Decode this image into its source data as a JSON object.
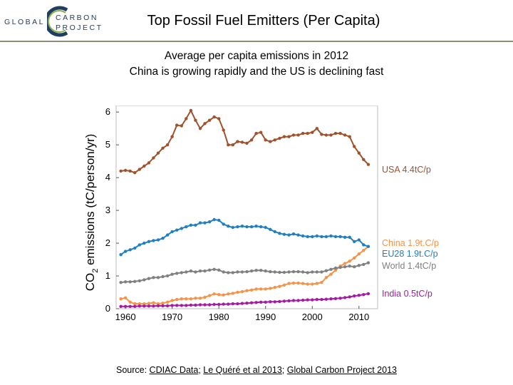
{
  "header": {
    "logo_word1": "GLOBAL",
    "logo_word2": "CARBON",
    "logo_word3": "PROJECT",
    "title": "Top Fossil Fuel Emitters (Per Capita)"
  },
  "subtitle": {
    "line1": "Average per capita emissions in 2012",
    "line2": "China is growing rapidly and the US is declining fast"
  },
  "source": {
    "prefix": "Source: ",
    "link1": "CDIAC Data",
    "sep1": "; ",
    "link2": "Le Quéré et al 2013",
    "sep2": "; ",
    "link3": "Global Carbon Project 2013"
  },
  "colors": {
    "logo_blue": "#1f3e62",
    "logo_green": "#8bb04a",
    "rule": "#8f8f78"
  },
  "chart_data": {
    "type": "line",
    "title": "",
    "ylabel_main": "CO",
    "ylabel_sub": "2",
    "ylabel_rest": " emissions (tC/person/yr)",
    "xlabel": "",
    "xlim": [
      1958,
      2014
    ],
    "ylim": [
      0,
      6.2
    ],
    "xticks": [
      1960,
      1970,
      1980,
      1990,
      2000,
      2010
    ],
    "yticks": [
      0,
      1,
      2,
      3,
      4,
      5,
      6
    ],
    "grid": false,
    "legend": "right-side end labels",
    "x": [
      1959,
      1960,
      1961,
      1962,
      1963,
      1964,
      1965,
      1966,
      1967,
      1968,
      1969,
      1970,
      1971,
      1972,
      1973,
      1974,
      1975,
      1976,
      1977,
      1978,
      1979,
      1980,
      1981,
      1982,
      1983,
      1984,
      1985,
      1986,
      1987,
      1988,
      1989,
      1990,
      1991,
      1992,
      1993,
      1994,
      1995,
      1996,
      1997,
      1998,
      1999,
      2000,
      2001,
      2002,
      2003,
      2004,
      2005,
      2006,
      2007,
      2008,
      2009,
      2010,
      2011,
      2012
    ],
    "series": [
      {
        "name": "USA 4.4tC/p",
        "color": "#a0522d",
        "values": [
          4.2,
          4.22,
          4.2,
          4.15,
          4.25,
          4.35,
          4.45,
          4.6,
          4.75,
          4.9,
          5.0,
          5.25,
          5.6,
          5.58,
          5.8,
          6.05,
          5.75,
          5.5,
          5.65,
          5.75,
          5.85,
          5.8,
          5.45,
          5.0,
          5.0,
          5.1,
          5.08,
          5.05,
          5.15,
          5.35,
          5.38,
          5.15,
          5.1,
          5.15,
          5.2,
          5.25,
          5.25,
          5.3,
          5.3,
          5.35,
          5.35,
          5.38,
          5.5,
          5.32,
          5.3,
          5.3,
          5.35,
          5.35,
          5.3,
          5.25,
          4.95,
          4.75,
          4.55,
          4.4
        ]
      },
      {
        "name": "China 1.9t.C/p",
        "color": "#f4934a",
        "values": [
          0.3,
          0.33,
          0.2,
          0.15,
          0.15,
          0.15,
          0.16,
          0.18,
          0.15,
          0.17,
          0.2,
          0.25,
          0.28,
          0.3,
          0.3,
          0.3,
          0.32,
          0.32,
          0.35,
          0.4,
          0.45,
          0.43,
          0.42,
          0.45,
          0.47,
          0.5,
          0.52,
          0.55,
          0.57,
          0.6,
          0.6,
          0.6,
          0.62,
          0.65,
          0.68,
          0.72,
          0.77,
          0.78,
          0.78,
          0.77,
          0.75,
          0.75,
          0.77,
          0.8,
          0.95,
          1.05,
          1.18,
          1.3,
          1.38,
          1.45,
          1.55,
          1.67,
          1.78,
          1.9
        ]
      },
      {
        "name": "EU28 1.9t.C/p",
        "color": "#1f7fc0",
        "values": [
          1.65,
          1.75,
          1.8,
          1.85,
          1.95,
          2.0,
          2.05,
          2.08,
          2.1,
          2.15,
          2.25,
          2.35,
          2.4,
          2.45,
          2.5,
          2.55,
          2.55,
          2.62,
          2.62,
          2.65,
          2.72,
          2.7,
          2.58,
          2.52,
          2.48,
          2.5,
          2.52,
          2.5,
          2.5,
          2.52,
          2.5,
          2.48,
          2.42,
          2.35,
          2.3,
          2.27,
          2.25,
          2.28,
          2.25,
          2.22,
          2.2,
          2.2,
          2.22,
          2.2,
          2.2,
          2.22,
          2.2,
          2.2,
          2.18,
          2.18,
          2.05,
          2.1,
          1.95,
          1.9
        ]
      },
      {
        "name": "World 1.4tC/p",
        "color": "#808080",
        "values": [
          0.8,
          0.82,
          0.82,
          0.83,
          0.85,
          0.88,
          0.92,
          0.95,
          0.95,
          0.98,
          1.0,
          1.05,
          1.08,
          1.1,
          1.12,
          1.15,
          1.12,
          1.15,
          1.15,
          1.18,
          1.2,
          1.18,
          1.12,
          1.1,
          1.1,
          1.12,
          1.12,
          1.13,
          1.15,
          1.17,
          1.17,
          1.15,
          1.13,
          1.12,
          1.11,
          1.11,
          1.12,
          1.13,
          1.13,
          1.12,
          1.1,
          1.12,
          1.12,
          1.12,
          1.16,
          1.2,
          1.24,
          1.26,
          1.28,
          1.3,
          1.28,
          1.32,
          1.35,
          1.4
        ]
      },
      {
        "name": "India 0.5tC/p",
        "color": "#a41ba4",
        "values": [
          0.07,
          0.07,
          0.07,
          0.07,
          0.08,
          0.08,
          0.08,
          0.08,
          0.09,
          0.09,
          0.09,
          0.1,
          0.1,
          0.1,
          0.1,
          0.11,
          0.11,
          0.12,
          0.12,
          0.12,
          0.13,
          0.13,
          0.14,
          0.14,
          0.15,
          0.15,
          0.16,
          0.17,
          0.18,
          0.19,
          0.2,
          0.2,
          0.21,
          0.21,
          0.22,
          0.23,
          0.24,
          0.25,
          0.25,
          0.26,
          0.27,
          0.27,
          0.28,
          0.28,
          0.29,
          0.3,
          0.31,
          0.32,
          0.34,
          0.36,
          0.39,
          0.41,
          0.43,
          0.46
        ]
      }
    ]
  }
}
